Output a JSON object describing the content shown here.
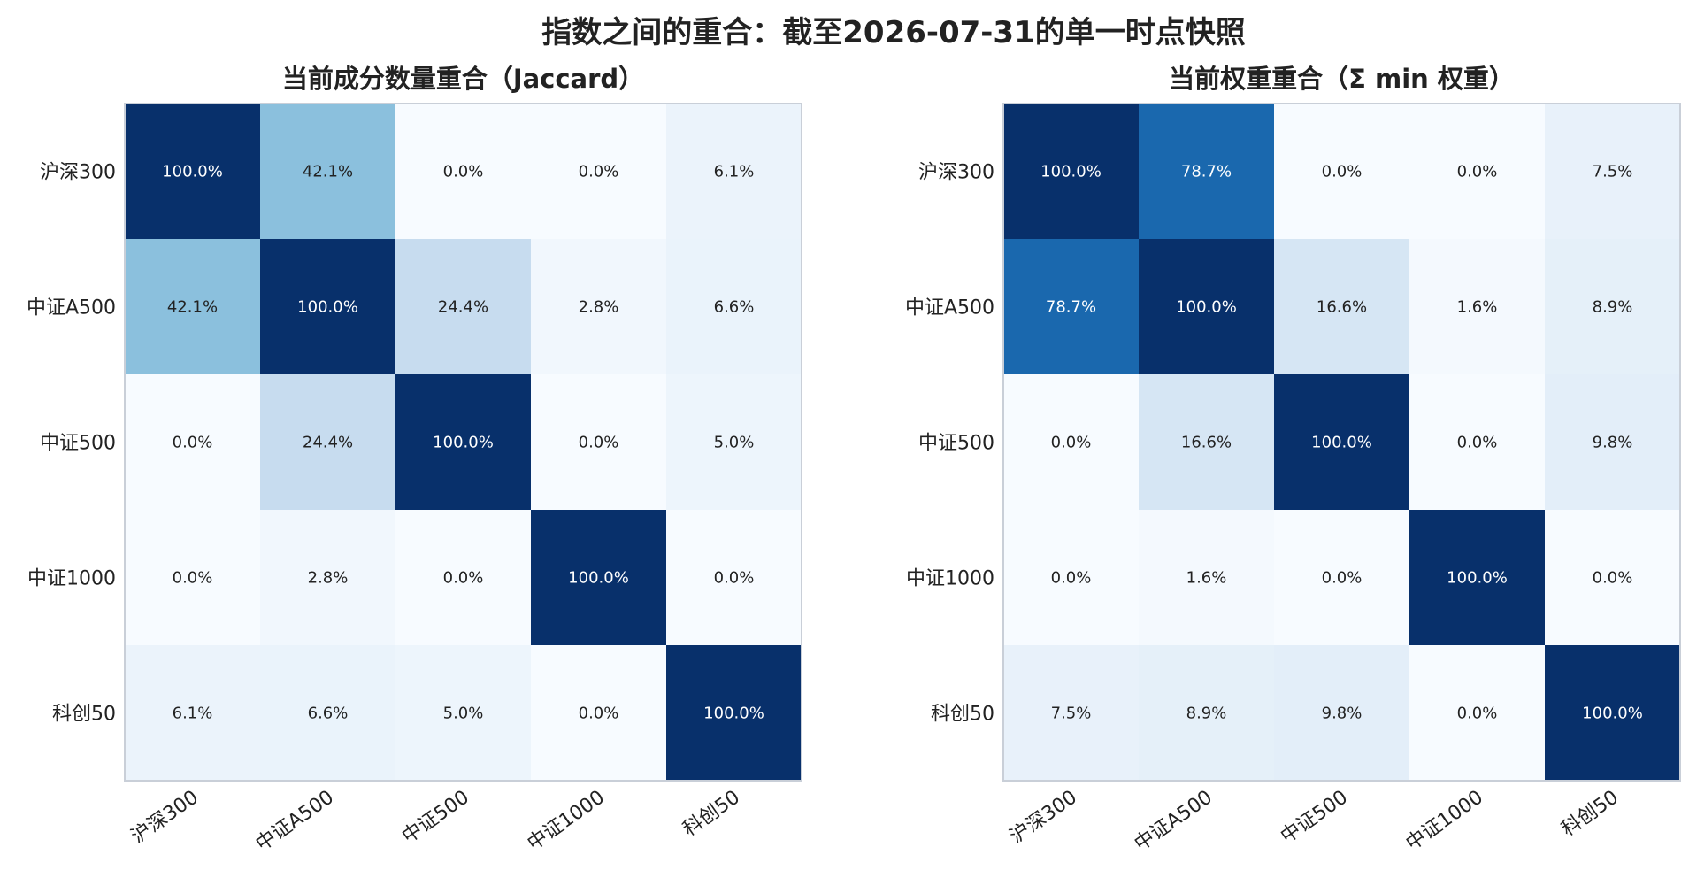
{
  "suptitle": "指数之间的重合：截至2026-07-31的单一时点快照",
  "chart_data": [
    {
      "type": "heatmap",
      "title": "当前成分数量重合（Jaccard）",
      "rows": [
        "沪深300",
        "中证A500",
        "中证500",
        "中证1000",
        "科创50"
      ],
      "columns": [
        "沪深300",
        "中证A500",
        "中证500",
        "中证1000",
        "科创50"
      ],
      "values": [
        [
          100.0,
          42.1,
          0.0,
          0.0,
          6.1
        ],
        [
          42.1,
          100.0,
          24.4,
          2.8,
          6.6
        ],
        [
          0.0,
          24.4,
          100.0,
          0.0,
          5.0
        ],
        [
          0.0,
          2.8,
          0.0,
          100.0,
          0.0
        ],
        [
          6.1,
          6.6,
          5.0,
          0.0,
          100.0
        ]
      ],
      "value_format": "percent_1dp",
      "colormap": "Blues",
      "vmin": 0,
      "vmax": 100
    },
    {
      "type": "heatmap",
      "title": "当前权重重合（Σ min 权重）",
      "rows": [
        "沪深300",
        "中证A500",
        "中证500",
        "中证1000",
        "科创50"
      ],
      "columns": [
        "沪深300",
        "中证A500",
        "中证500",
        "中证1000",
        "科创50"
      ],
      "values": [
        [
          100.0,
          78.7,
          0.0,
          0.0,
          7.5
        ],
        [
          78.7,
          100.0,
          16.6,
          1.6,
          8.9
        ],
        [
          0.0,
          16.6,
          100.0,
          0.0,
          9.8
        ],
        [
          0.0,
          1.6,
          0.0,
          100.0,
          0.0
        ],
        [
          7.5,
          8.9,
          9.8,
          0.0,
          100.0
        ]
      ],
      "value_format": "percent_1dp",
      "colormap": "Blues",
      "vmin": 0,
      "vmax": 100
    }
  ],
  "colors": {
    "blues_stops": [
      "#f7fbff",
      "#deebf7",
      "#c6dbef",
      "#9ecae1",
      "#6baed6",
      "#4292c6",
      "#2171b5",
      "#08519c",
      "#08306b"
    ],
    "frame": "#c9cfd8",
    "text_dark": "#222222",
    "text_light": "#ffffff"
  }
}
